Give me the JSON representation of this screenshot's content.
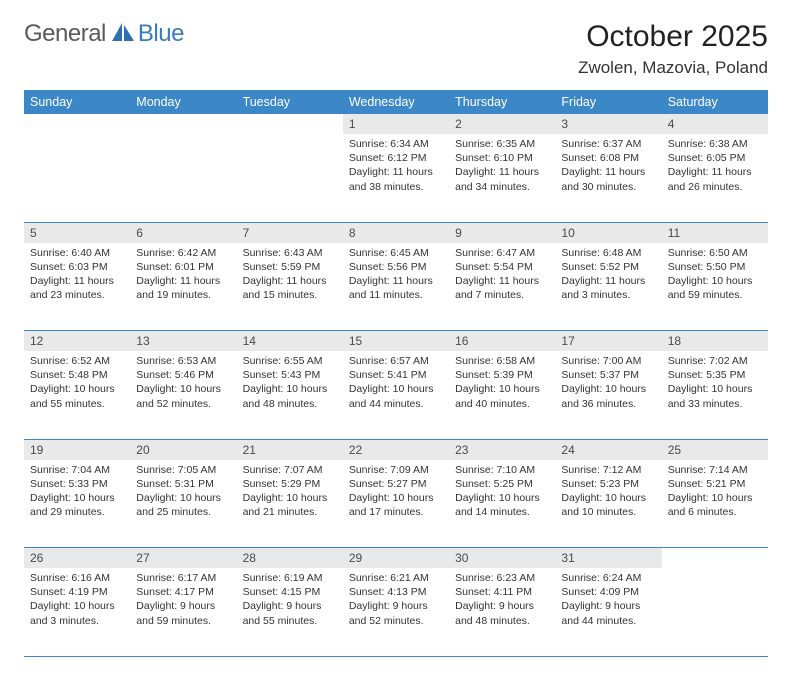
{
  "logo": {
    "part1": "General",
    "part2": "Blue"
  },
  "header": {
    "month_year": "October 2025",
    "location": "Zwolen, Mazovia, Poland"
  },
  "style": {
    "header_bg": "#3b87c8",
    "header_fg": "#ffffff",
    "daynum_bg": "#e9e9e9",
    "daynum_fg": "#4a4a4a",
    "rule_color": "#3b87c8",
    "body_font_size": 10.5,
    "header_font_size": 12.5,
    "title_font_size": 30,
    "location_font_size": 17
  },
  "weekdays": [
    "Sunday",
    "Monday",
    "Tuesday",
    "Wednesday",
    "Thursday",
    "Friday",
    "Saturday"
  ],
  "weeks": [
    [
      null,
      null,
      null,
      {
        "day": "1",
        "sunrise": "6:34 AM",
        "sunset": "6:12 PM",
        "daylight": "11 hours and 38 minutes."
      },
      {
        "day": "2",
        "sunrise": "6:35 AM",
        "sunset": "6:10 PM",
        "daylight": "11 hours and 34 minutes."
      },
      {
        "day": "3",
        "sunrise": "6:37 AM",
        "sunset": "6:08 PM",
        "daylight": "11 hours and 30 minutes."
      },
      {
        "day": "4",
        "sunrise": "6:38 AM",
        "sunset": "6:05 PM",
        "daylight": "11 hours and 26 minutes."
      }
    ],
    [
      {
        "day": "5",
        "sunrise": "6:40 AM",
        "sunset": "6:03 PM",
        "daylight": "11 hours and 23 minutes."
      },
      {
        "day": "6",
        "sunrise": "6:42 AM",
        "sunset": "6:01 PM",
        "daylight": "11 hours and 19 minutes."
      },
      {
        "day": "7",
        "sunrise": "6:43 AM",
        "sunset": "5:59 PM",
        "daylight": "11 hours and 15 minutes."
      },
      {
        "day": "8",
        "sunrise": "6:45 AM",
        "sunset": "5:56 PM",
        "daylight": "11 hours and 11 minutes."
      },
      {
        "day": "9",
        "sunrise": "6:47 AM",
        "sunset": "5:54 PM",
        "daylight": "11 hours and 7 minutes."
      },
      {
        "day": "10",
        "sunrise": "6:48 AM",
        "sunset": "5:52 PM",
        "daylight": "11 hours and 3 minutes."
      },
      {
        "day": "11",
        "sunrise": "6:50 AM",
        "sunset": "5:50 PM",
        "daylight": "10 hours and 59 minutes."
      }
    ],
    [
      {
        "day": "12",
        "sunrise": "6:52 AM",
        "sunset": "5:48 PM",
        "daylight": "10 hours and 55 minutes."
      },
      {
        "day": "13",
        "sunrise": "6:53 AM",
        "sunset": "5:46 PM",
        "daylight": "10 hours and 52 minutes."
      },
      {
        "day": "14",
        "sunrise": "6:55 AM",
        "sunset": "5:43 PM",
        "daylight": "10 hours and 48 minutes."
      },
      {
        "day": "15",
        "sunrise": "6:57 AM",
        "sunset": "5:41 PM",
        "daylight": "10 hours and 44 minutes."
      },
      {
        "day": "16",
        "sunrise": "6:58 AM",
        "sunset": "5:39 PM",
        "daylight": "10 hours and 40 minutes."
      },
      {
        "day": "17",
        "sunrise": "7:00 AM",
        "sunset": "5:37 PM",
        "daylight": "10 hours and 36 minutes."
      },
      {
        "day": "18",
        "sunrise": "7:02 AM",
        "sunset": "5:35 PM",
        "daylight": "10 hours and 33 minutes."
      }
    ],
    [
      {
        "day": "19",
        "sunrise": "7:04 AM",
        "sunset": "5:33 PM",
        "daylight": "10 hours and 29 minutes."
      },
      {
        "day": "20",
        "sunrise": "7:05 AM",
        "sunset": "5:31 PM",
        "daylight": "10 hours and 25 minutes."
      },
      {
        "day": "21",
        "sunrise": "7:07 AM",
        "sunset": "5:29 PM",
        "daylight": "10 hours and 21 minutes."
      },
      {
        "day": "22",
        "sunrise": "7:09 AM",
        "sunset": "5:27 PM",
        "daylight": "10 hours and 17 minutes."
      },
      {
        "day": "23",
        "sunrise": "7:10 AM",
        "sunset": "5:25 PM",
        "daylight": "10 hours and 14 minutes."
      },
      {
        "day": "24",
        "sunrise": "7:12 AM",
        "sunset": "5:23 PM",
        "daylight": "10 hours and 10 minutes."
      },
      {
        "day": "25",
        "sunrise": "7:14 AM",
        "sunset": "5:21 PM",
        "daylight": "10 hours and 6 minutes."
      }
    ],
    [
      {
        "day": "26",
        "sunrise": "6:16 AM",
        "sunset": "4:19 PM",
        "daylight": "10 hours and 3 minutes."
      },
      {
        "day": "27",
        "sunrise": "6:17 AM",
        "sunset": "4:17 PM",
        "daylight": "9 hours and 59 minutes."
      },
      {
        "day": "28",
        "sunrise": "6:19 AM",
        "sunset": "4:15 PM",
        "daylight": "9 hours and 55 minutes."
      },
      {
        "day": "29",
        "sunrise": "6:21 AM",
        "sunset": "4:13 PM",
        "daylight": "9 hours and 52 minutes."
      },
      {
        "day": "30",
        "sunrise": "6:23 AM",
        "sunset": "4:11 PM",
        "daylight": "9 hours and 48 minutes."
      },
      {
        "day": "31",
        "sunrise": "6:24 AM",
        "sunset": "4:09 PM",
        "daylight": "9 hours and 44 minutes."
      },
      null
    ]
  ],
  "labels": {
    "sunrise": "Sunrise:",
    "sunset": "Sunset:",
    "daylight": "Daylight:"
  }
}
